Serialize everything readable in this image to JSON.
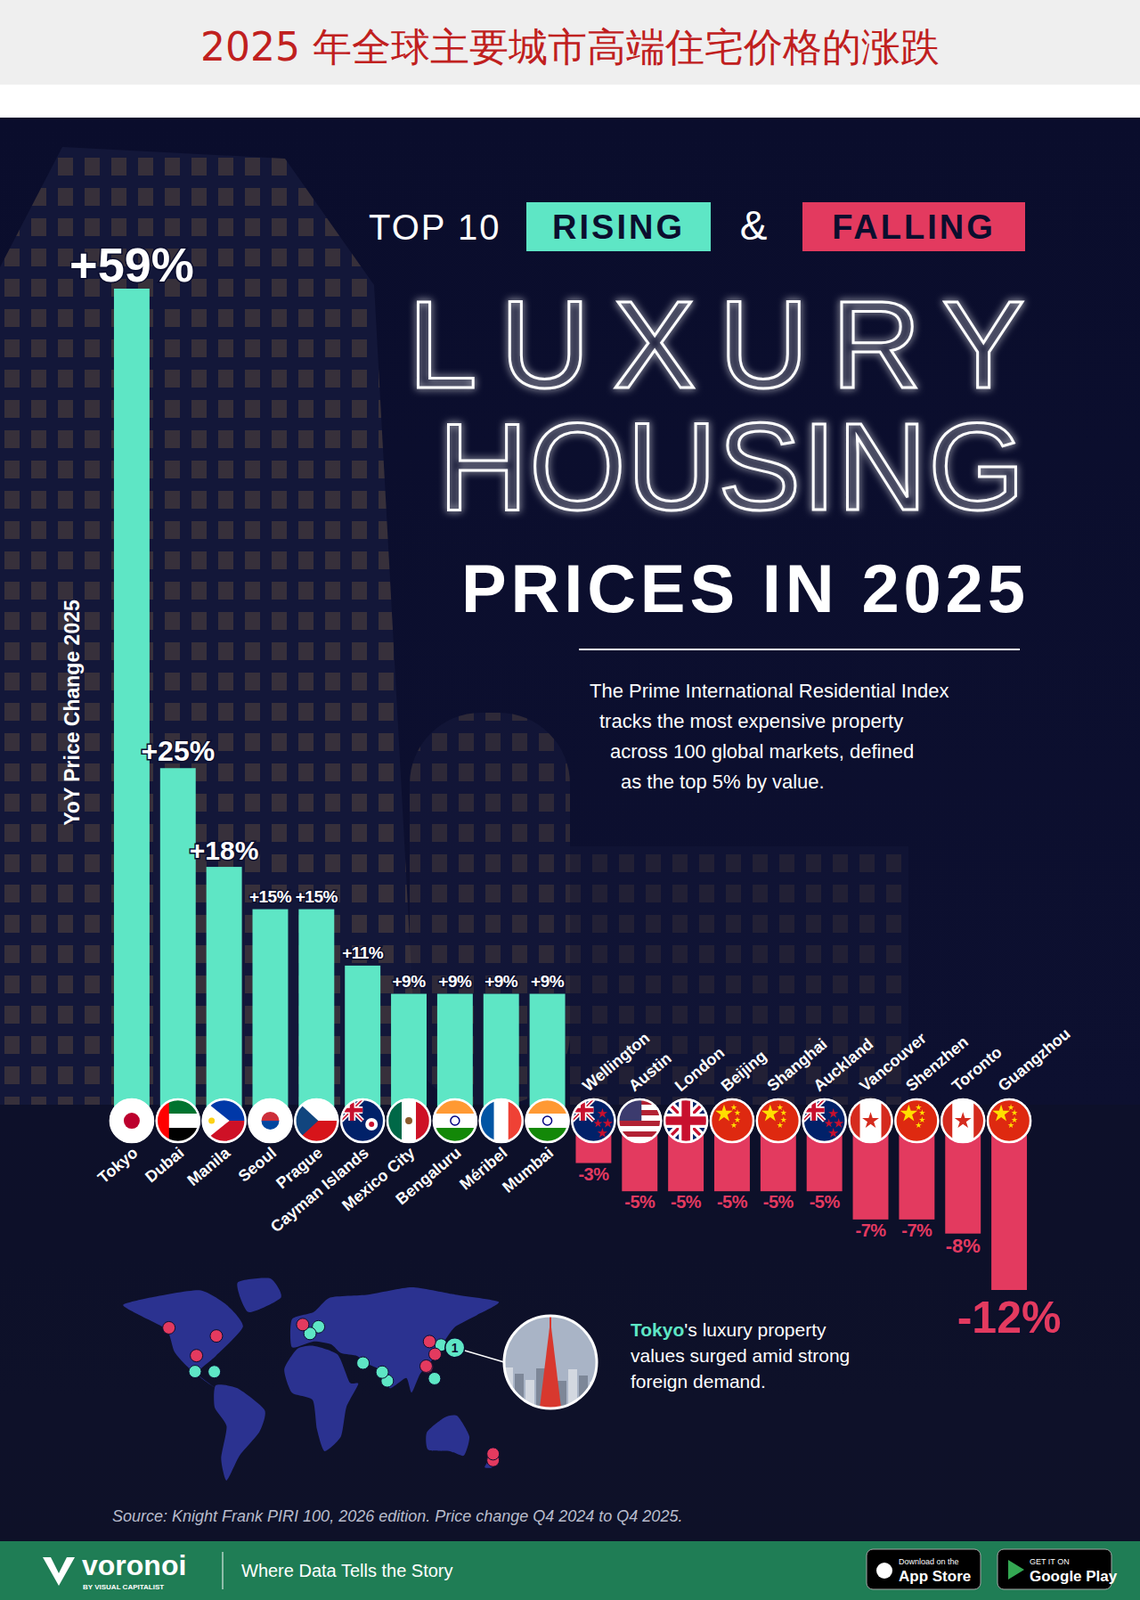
{
  "header": {
    "title": "2025 年全球主要城市高端住宅价格的涨跌"
  },
  "chart_data": {
    "type": "bar",
    "kicker": [
      "TOP 10",
      "RISING",
      "&",
      "FALLING"
    ],
    "title": "LUXURY HOUSING",
    "subtitle": "PRICES IN 2025",
    "description": [
      "The Prime International Residential Index",
      "tracks the most expensive property",
      "across 100 global markets, defined",
      "as the top 5% by value."
    ],
    "ylabel": "YoY Price Change 2025",
    "categories": [
      "Tokyo",
      "Dubai",
      "Manila",
      "Seoul",
      "Prague",
      "Cayman Islands",
      "Mexico City",
      "Bengaluru",
      "Méribel",
      "Mumbai",
      "Wellington",
      "Austin",
      "London",
      "Beijing",
      "Shanghai",
      "Auckland",
      "Vancouver",
      "Shenzhen",
      "Toronto",
      "Guangzhou"
    ],
    "values": [
      59,
      25,
      18,
      15,
      15,
      11,
      9,
      9,
      9,
      9,
      -3,
      -5,
      -5,
      -5,
      -5,
      -5,
      -7,
      -7,
      -8,
      -12
    ],
    "value_labels": [
      "+59%",
      "+25%",
      "+18%",
      "+15%",
      "+15%",
      "+11%",
      "+9%",
      "+9%",
      "+9%",
      "+9%",
      "-3%",
      "-5%",
      "-5%",
      "-5%",
      "-5%",
      "-5%",
      "-7%",
      "-7%",
      "-8%",
      "-12%"
    ],
    "colors": [
      "#5ee6c5",
      "#5ee6c5",
      "#5ee6c5",
      "#5ee6c5",
      "#5ee6c5",
      "#5ee6c5",
      "#5ee6c5",
      "#5ee6c5",
      "#5ee6c5",
      "#5ee6c5",
      "#e33a5f",
      "#e33a5f",
      "#e33a5f",
      "#e33a5f",
      "#e33a5f",
      "#e33a5f",
      "#e33a5f",
      "#e33a5f",
      "#e33a5f",
      "#e33a5f"
    ],
    "ylim": [
      -12,
      59
    ],
    "tick_labels": false,
    "grid": false,
    "data_labels": true,
    "annotations": [
      {
        "marker": "1",
        "lines": [
          [
            "Tokyo",
            "'s luxury property"
          ],
          [
            "values surged amid strong"
          ],
          [
            "foreign demand."
          ]
        ]
      }
    ],
    "source": "Source: Knight Frank PIRI 100, 2026 edition. Price change Q4 2024 to Q4 2025."
  },
  "footer": {
    "logo": "voronoi",
    "logo_sub": "BY VISUAL CAPITALIST",
    "tagline": "Where Data Tells the Story",
    "badges": [
      {
        "small": "Download on the",
        "big": "App Store"
      },
      {
        "small": "GET IT ON",
        "big": "Google Play"
      }
    ]
  }
}
